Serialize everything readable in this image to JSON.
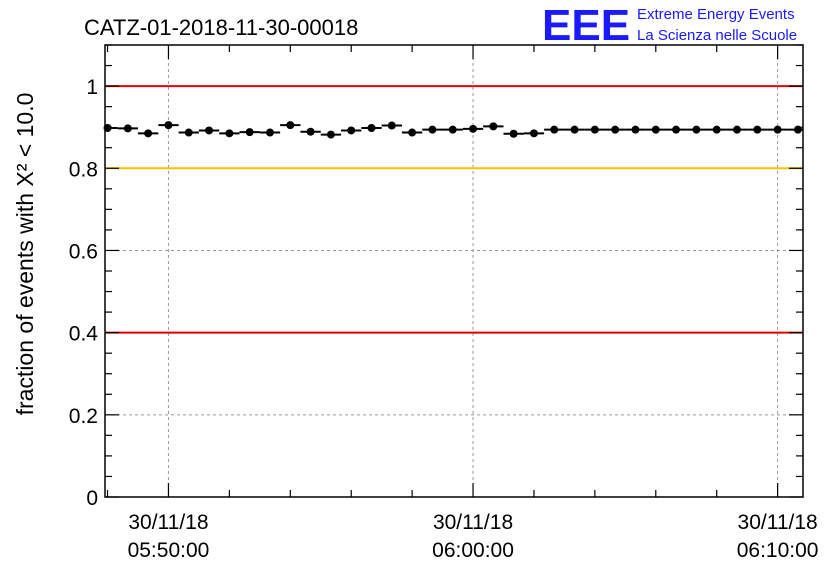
{
  "chart_data": {
    "type": "scatter",
    "title": "CATZ-01-2018-11-30-00018",
    "ylabel": "fraction of events with X² < 10.0",
    "ylim": [
      0,
      1.1
    ],
    "yticks": [
      0,
      0.2,
      0.4,
      0.6,
      0.8,
      1
    ],
    "ytick_labels": [
      "0",
      "0.2",
      "0.4",
      "0.6",
      "0.8",
      "1"
    ],
    "xlim": [
      "2018-11-30 05:47:55",
      "2018-11-30 06:10:50"
    ],
    "xticks": [
      {
        "date": "30/11/18",
        "time": "05:50:00"
      },
      {
        "date": "30/11/18",
        "time": "06:00:00"
      },
      {
        "date": "30/11/18",
        "time": "06:10:00"
      }
    ],
    "grid": true,
    "reference_lines": [
      {
        "y": 1.0,
        "color": "#e00000"
      },
      {
        "y": 0.8,
        "color": "#ffc000"
      },
      {
        "y": 0.4,
        "color": "#e00000"
      }
    ],
    "bin_width_seconds": 40,
    "x": [
      "05:48:00",
      "05:48:40",
      "05:49:20",
      "05:50:00",
      "05:50:40",
      "05:51:20",
      "05:52:00",
      "05:52:40",
      "05:53:20",
      "05:54:00",
      "05:54:40",
      "05:55:20",
      "05:56:00",
      "05:56:40",
      "05:57:20",
      "05:58:00",
      "05:58:40",
      "05:59:20",
      "06:00:00",
      "06:00:40",
      "06:01:20",
      "06:02:00",
      "06:02:40",
      "06:03:20",
      "06:04:00",
      "06:04:40",
      "06:05:20",
      "06:06:00",
      "06:06:40",
      "06:07:20",
      "06:08:00",
      "06:08:40",
      "06:09:20",
      "06:10:00",
      "06:10:40"
    ],
    "values": [
      0.898,
      0.897,
      0.885,
      0.905,
      0.887,
      0.892,
      0.885,
      0.888,
      0.887,
      0.905,
      0.889,
      0.882,
      0.892,
      0.898,
      0.904,
      0.887,
      0.894,
      0.894,
      0.896,
      0.902,
      0.884,
      0.885,
      0.894,
      0.894,
      0.894,
      0.894,
      0.894,
      0.894,
      0.894,
      0.894,
      0.894,
      0.894,
      0.894,
      0.894,
      0.894
    ],
    "marker_color": "#000000"
  },
  "logo": {
    "mark": "EEE",
    "line1": "Extreme Energy Events",
    "line2": "La Scienza nelle Scuole",
    "color": "#1a1aff"
  }
}
